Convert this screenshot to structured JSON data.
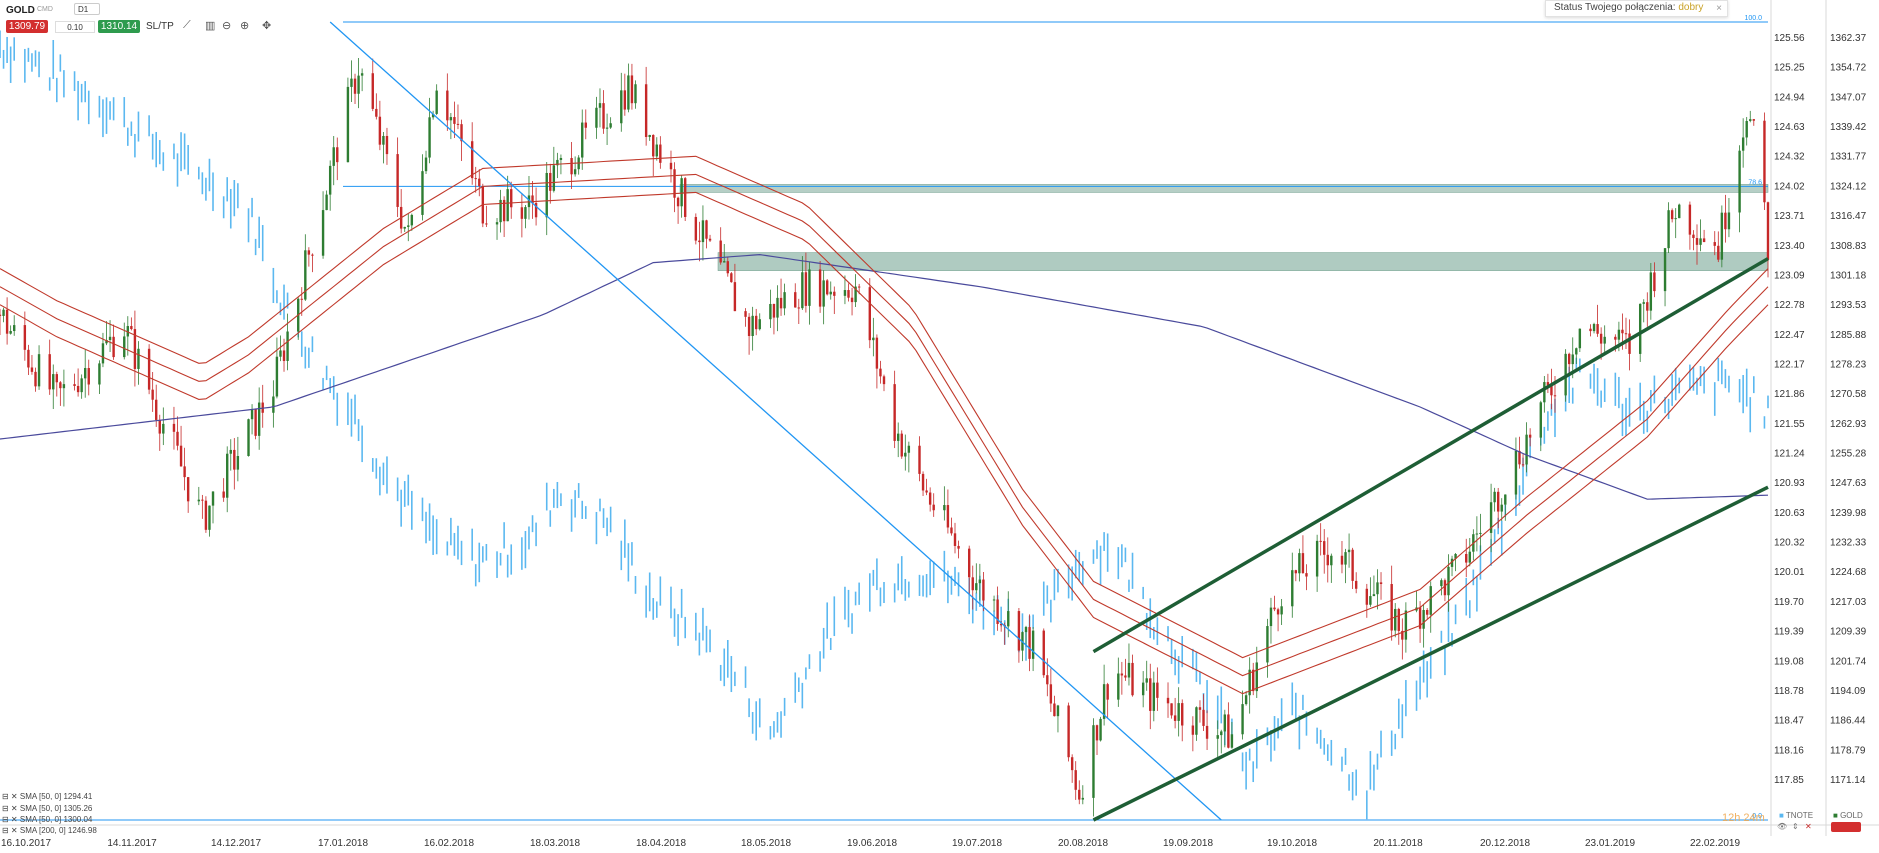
{
  "toolbar": {
    "symbol": "GOLD",
    "sub_label": "CMD",
    "timeframe": "D1",
    "bid": "1309.79",
    "spread": "0.10",
    "ask": "1310.14",
    "sltp_label": "SL/TP",
    "icons": [
      "line-chart-icon",
      "candles-icon",
      "zoom-out-icon",
      "zoom-in-icon",
      "crosshair-icon"
    ]
  },
  "status": {
    "label": "Status Twojego połączenia:",
    "value": "dobry",
    "close": "×"
  },
  "legend": [
    "SMA [50, 0] 1294.41",
    "SMA [50, 0] 1305.26",
    "SMA [50, 0] 1300.04",
    "SMA [200, 0] 1246.98"
  ],
  "bottom_right": {
    "tnote_label": "TNOTE",
    "gold_label": "GOLD",
    "timer": "12h 24m"
  },
  "colors": {
    "gold_up": "#2e7d32",
    "gold_down": "#c62828",
    "tnote": "#5bb8f0",
    "sma50": "#c0392b",
    "sma200": "#4a4a9c",
    "channel": "#1e5e35",
    "zone": "#7aa898",
    "fib": "#2196f3",
    "bid_box": "#d32f2f",
    "ask_box": "#2e9b4e"
  },
  "chart_data": {
    "type": "candlestick",
    "series": [
      {
        "name": "GOLD",
        "axis": "right",
        "style": "candle"
      },
      {
        "name": "TNOTE",
        "axis": "left",
        "style": "bar"
      },
      {
        "name": "SMA [50, 0]",
        "style": "line"
      },
      {
        "name": "SMA [200, 0]",
        "style": "line"
      }
    ],
    "x_ticks": [
      "16.10.2017",
      "14.11.2017",
      "14.12.2017",
      "17.01.2018",
      "16.02.2018",
      "18.03.2018",
      "18.04.2018",
      "18.05.2018",
      "19.06.2018",
      "19.07.2018",
      "20.08.2018",
      "19.09.2018",
      "19.10.2018",
      "20.11.2018",
      "20.12.2018",
      "23.01.2019",
      "22.02.2019"
    ],
    "left_axis_ticks": [
      "125.56",
      "125.25",
      "124.94",
      "124.63",
      "124.32",
      "124.02",
      "123.71",
      "123.40",
      "123.09",
      "122.78",
      "122.47",
      "122.17",
      "121.86",
      "121.55",
      "121.24",
      "120.93",
      "120.63",
      "120.32",
      "120.01",
      "119.70",
      "119.39",
      "119.08",
      "118.78",
      "118.47",
      "118.16",
      "117.85"
    ],
    "right_axis_ticks": [
      "1362.37",
      "1354.72",
      "1347.07",
      "1339.42",
      "1331.77",
      "1324.12",
      "1316.47",
      "1308.83",
      "1301.18",
      "1293.53",
      "1285.88",
      "1278.23",
      "1270.58",
      "1262.93",
      "1255.28",
      "1247.63",
      "1239.98",
      "1232.33",
      "1224.68",
      "1217.03",
      "1209.39",
      "1201.74",
      "1194.09",
      "1186.44",
      "1178.79",
      "1171.14"
    ],
    "fib_levels": [
      {
        "label": "100.0",
        "value": 1366.0
      },
      {
        "label": "78.6",
        "value": 1325.0
      },
      {
        "label": "0.0",
        "value": 1167.0
      }
    ],
    "zones": [
      {
        "from": 1323.5,
        "to": 1325.5
      },
      {
        "from": 1304.0,
        "to": 1308.5
      }
    ],
    "gold_anchors": [
      [
        "16.10.2017",
        1293
      ],
      [
        "01.11.2017",
        1272
      ],
      [
        "20.11.2017",
        1290
      ],
      [
        "12.12.2017",
        1242
      ],
      [
        "01.01.2018",
        1275
      ],
      [
        "25.01.2018",
        1355
      ],
      [
        "08.02.2018",
        1312
      ],
      [
        "16.02.2018",
        1352
      ],
      [
        "01.03.2018",
        1320
      ],
      [
        "14.03.2018",
        1320
      ],
      [
        "11.04.2018",
        1350
      ],
      [
        "30.04.2018",
        1315
      ],
      [
        "15.05.2018",
        1290
      ],
      [
        "30.05.2018",
        1300
      ],
      [
        "14.06.2018",
        1300
      ],
      [
        "25.06.2018",
        1265
      ],
      [
        "03.07.2018",
        1250
      ],
      [
        "19.07.2018",
        1225
      ],
      [
        "03.08.2018",
        1210
      ],
      [
        "16.08.2018",
        1174
      ],
      [
        "25.08.2018",
        1205
      ],
      [
        "05.09.2018",
        1198
      ],
      [
        "28.09.2018",
        1188
      ],
      [
        "12.10.2018",
        1225
      ],
      [
        "26.10.2018",
        1235
      ],
      [
        "15.11.2018",
        1215
      ],
      [
        "01.12.2018",
        1230
      ],
      [
        "20.12.2018",
        1262
      ],
      [
        "04.01.2019",
        1290
      ],
      [
        "18.01.2019",
        1285
      ],
      [
        "31.01.2019",
        1320
      ],
      [
        "12.02.2019",
        1310
      ],
      [
        "20.02.2019",
        1345
      ],
      [
        "24.02.2019",
        1328
      ],
      [
        "26.02.2019",
        1310
      ]
    ],
    "tnote_anchors": [
      [
        "16.10.2017",
        125.5
      ],
      [
        "14.11.2017",
        124.9
      ],
      [
        "01.12.2017",
        124.4
      ],
      [
        "24.12.2017",
        123.9
      ],
      [
        "05.01.2018",
        122.8
      ],
      [
        "15.01.2018",
        122.2
      ],
      [
        "25.01.2018",
        121.7
      ],
      [
        "01.02.2018",
        121.2
      ],
      [
        "16.02.2018",
        120.5
      ],
      [
        "28.02.2018",
        120.3
      ],
      [
        "14.03.2018",
        120.5
      ],
      [
        "22.03.2018",
        121.0
      ],
      [
        "05.04.2018",
        120.7
      ],
      [
        "18.04.2018",
        119.9
      ],
      [
        "01.05.2018",
        119.6
      ],
      [
        "14.05.2018",
        119.0
      ],
      [
        "20.05.2018",
        118.5
      ],
      [
        "05.06.2018",
        119.5
      ],
      [
        "19.06.2018",
        120.1
      ],
      [
        "05.07.2018",
        120.2
      ],
      [
        "19.07.2018",
        119.9
      ],
      [
        "03.08.2018",
        119.6
      ],
      [
        "16.08.2018",
        120.3
      ],
      [
        "25.08.2018",
        120.5
      ],
      [
        "05.09.2018",
        119.8
      ],
      [
        "20.09.2018",
        119.0
      ],
      [
        "03.10.2018",
        118.2
      ],
      [
        "15.10.2018",
        118.8
      ],
      [
        "25.10.2018",
        118.5
      ],
      [
        "05.11.2018",
        118.0
      ],
      [
        "15.11.2018",
        118.8
      ],
      [
        "25.11.2018",
        119.3
      ],
      [
        "10.12.2018",
        120.4
      ],
      [
        "25.12.2018",
        121.7
      ],
      [
        "05.01.2019",
        122.2
      ],
      [
        "18.01.2019",
        121.8
      ],
      [
        "01.02.2019",
        122.0
      ],
      [
        "15.02.2019",
        122.1
      ],
      [
        "26.02.2019",
        121.8
      ]
    ],
    "sma200_anchors": [
      [
        "16.10.2017",
        1262
      ],
      [
        "01.01.2018",
        1270
      ],
      [
        "18.03.2018",
        1293
      ],
      [
        "18.04.2018",
        1306
      ],
      [
        "18.05.2018",
        1308
      ],
      [
        "19.07.2018",
        1300
      ],
      [
        "20.09.2018",
        1290
      ],
      [
        "20.11.2018",
        1270
      ],
      [
        "20.12.2018",
        1258
      ],
      [
        "23.01.2019",
        1247
      ],
      [
        "26.02.2019",
        1248
      ]
    ],
    "sma_mid_anchors": [
      [
        "16.10.2017",
        1300
      ],
      [
        "01.11.2017",
        1292
      ],
      [
        "12.12.2017",
        1276
      ],
      [
        "25.12.2017",
        1283
      ],
      [
        "01.02.2018",
        1310
      ],
      [
        "01.03.2018",
        1325
      ],
      [
        "30.04.2018",
        1328
      ],
      [
        "31.05.2018",
        1316
      ],
      [
        "30.06.2018",
        1290
      ],
      [
        "31.07.2018",
        1245
      ],
      [
        "20.08.2018",
        1222
      ],
      [
        "20.09.2018",
        1208
      ],
      [
        "01.10.2018",
        1203
      ],
      [
        "20.11.2018",
        1220
      ],
      [
        "20.12.2018",
        1243
      ],
      [
        "23.01.2019",
        1267
      ],
      [
        "15.02.2019",
        1290
      ],
      [
        "26.02.2019",
        1300
      ]
    ],
    "sma_band_offset": 4.5,
    "channel_lines": [
      {
        "from": [
          "20.08.2018",
          1209
        ],
        "to": [
          "26.02.2019",
          1307
        ]
      },
      {
        "from": [
          "20.08.2018",
          1167
        ],
        "to": [
          "26.02.2019",
          1250
        ]
      }
    ],
    "trend_line": {
      "from": [
        "17.01.2018",
        1366
      ],
      "to": [
        "25.09.2018",
        1167
      ]
    }
  }
}
